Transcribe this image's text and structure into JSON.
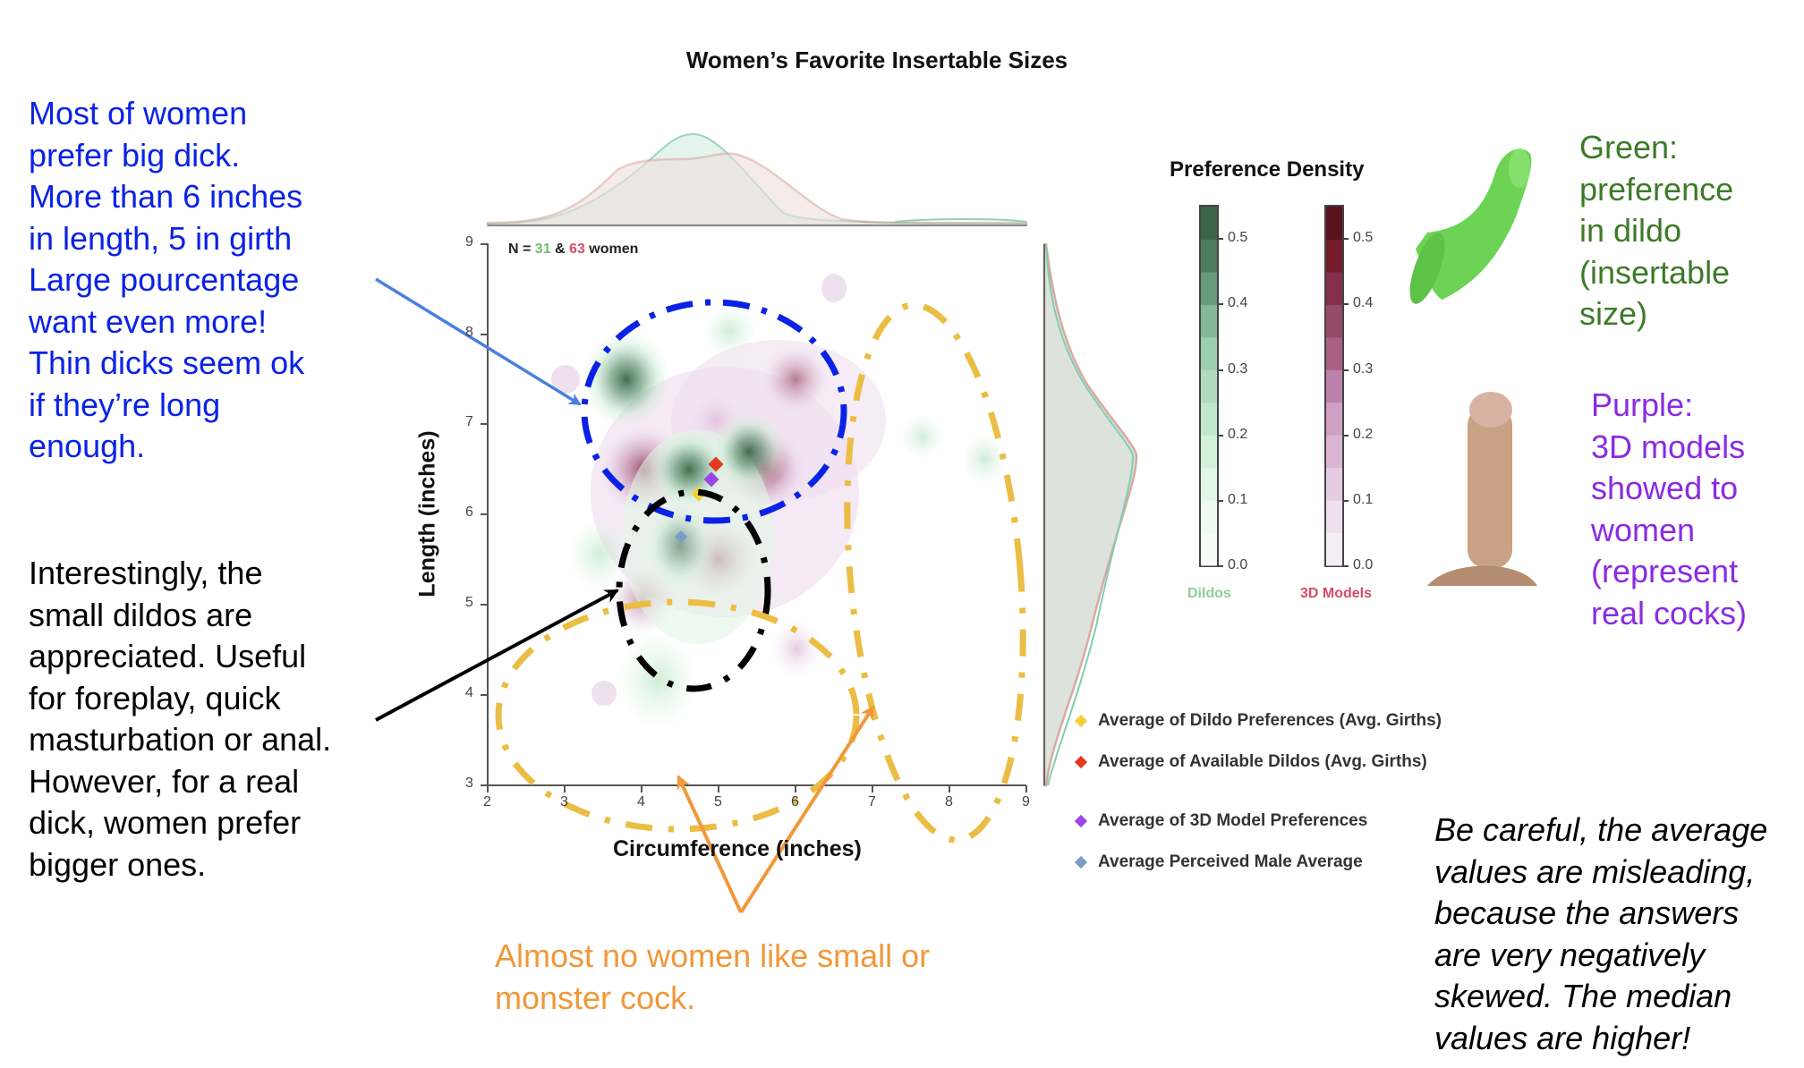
{
  "title": "Women’s Favorite Insertable Sizes",
  "sample_label": {
    "prefix": "N = ",
    "dildo_n": "31",
    "sep": " & ",
    "model_n": "63",
    "suffix": " women"
  },
  "axes": {
    "xlabel": "Circumference (inches)",
    "ylabel": "Length (inches)",
    "xticks": [
      "2",
      "3",
      "4",
      "5",
      "6",
      "7",
      "8",
      "9"
    ],
    "yticks": [
      "9",
      "8",
      "7",
      "6",
      "5",
      "4",
      "3"
    ]
  },
  "colorbar": {
    "title": "Preference Density",
    "ticks": [
      "0.5",
      "0.4",
      "0.3",
      "0.2",
      "0.1",
      "0.0"
    ],
    "dildos_label": "Dildos",
    "models_label": "3D Models",
    "green_steps": [
      "#f6fbf5",
      "#eefaf0",
      "#e2f6e6",
      "#d2f0da",
      "#c2e8cc",
      "#b0dcbd",
      "#9ccfab",
      "#82b893",
      "#67997a",
      "#4d7d5c",
      "#3a6645"
    ],
    "red_steps": [
      "#f6eef6",
      "#efe0ef",
      "#e6cce3",
      "#dab5d4",
      "#cf9fc4",
      "#bd82ab",
      "#a96082",
      "#964b67",
      "#842e4b",
      "#751a2a",
      "#5a121d"
    ]
  },
  "legend": [
    {
      "label": "Average of Dildo Preferences (Avg. Girths)",
      "color": "#f3cf3a"
    },
    {
      "label": "Average of Available Dildos (Avg. Girths)",
      "color": "#e23a22"
    },
    {
      "label": "Average of 3D Model Preferences",
      "color": "#9b45e6"
    },
    {
      "label": "Average Perceived Male Average",
      "color": "#7a9cc8"
    }
  ],
  "annotations": {
    "blue": "Most of women\nprefer big dick.\nMore than 6 inches\nin length, 5 in girth\nLarge pourcentage\nwant even more!\nThin dicks  seem ok\nif they’re long\nenough.",
    "black": "Interestingly, the\nsmall dildos are\nappreciated. Useful\nfor foreplay, quick\nmasturbation or anal.\nHowever, for a real\ndick, women prefer\nbigger ones.",
    "orange": "Almost no women like small or\nmonster cock.",
    "green": "Green:\npreference\nin dildo\n(insertable\nsize)",
    "purple": "Purple:\n3D models\nshowed to\nwomen\n(represent\nreal cocks)",
    "italic": "Be careful, the average\nvalues are misleading,\nbecause the answers\nare very negatively\nskewed. The median\nvalues are higher!"
  },
  "colors": {
    "blue_note": "#0a22e6",
    "orange_note": "#f0983a",
    "green_note": "#3d7a28",
    "purple_note": "#8a2be2",
    "ellipse_blue": "#0a22e6",
    "ellipse_black": "#000000",
    "ellipse_yellow": "#ebbd45",
    "dildo_green": "#5dbf5d",
    "model_red": "#c2506e"
  },
  "chart_data": {
    "type": "heatmap",
    "title": "Women’s Favorite Insertable Sizes",
    "subtitle": "N = 31 & 63 women",
    "xlabel": "Circumference (inches)",
    "ylabel": "Length (inches)",
    "xlim": [
      2,
      9
    ],
    "ylim": [
      3,
      9
    ],
    "grid": false,
    "legend_position": "right",
    "colorbar_range": [
      0.0,
      0.55
    ],
    "series": [
      {
        "name": "Dildos",
        "kind": "density_peaks",
        "points": [
          {
            "x": 3.8,
            "y": 7.5,
            "density": 0.5
          },
          {
            "x": 4.6,
            "y": 6.5,
            "density": 0.45
          },
          {
            "x": 5.4,
            "y": 6.7,
            "density": 0.5
          },
          {
            "x": 4.5,
            "y": 5.8,
            "density": 0.3
          },
          {
            "x": 5.1,
            "y": 8.0,
            "density": 0.1
          },
          {
            "x": 7.7,
            "y": 6.85,
            "density": 0.1
          },
          {
            "x": 8.5,
            "y": 6.6,
            "density": 0.1
          },
          {
            "x": 4.1,
            "y": 4.3,
            "density": 0.1
          },
          {
            "x": 3.4,
            "y": 5.5,
            "density": 0.1
          }
        ]
      },
      {
        "name": "3D Models",
        "kind": "density_peaks",
        "points": [
          {
            "x": 6.0,
            "y": 7.5,
            "density": 0.3
          },
          {
            "x": 4.0,
            "y": 6.5,
            "density": 0.45
          },
          {
            "x": 5.5,
            "y": 6.5,
            "density": 0.45
          },
          {
            "x": 5.0,
            "y": 5.5,
            "density": 0.35
          },
          {
            "x": 4.0,
            "y": 5.05,
            "density": 0.25
          },
          {
            "x": 6.0,
            "y": 4.5,
            "density": 0.15
          },
          {
            "x": 2.5,
            "y": 7.5,
            "density": 0.05
          },
          {
            "x": 7.5,
            "y": 8.5,
            "density": 0.05
          },
          {
            "x": 3.5,
            "y": 4.0,
            "density": 0.05
          }
        ]
      },
      {
        "name": "Average of Dildo Preferences (Avg. Girths)",
        "kind": "marker",
        "x": 4.8,
        "y": 6.2
      },
      {
        "name": "Average of Available Dildos (Avg. Girths)",
        "kind": "marker",
        "x": 4.97,
        "y": 6.55
      },
      {
        "name": "Average of 3D Model Preferences",
        "kind": "marker",
        "x": 4.92,
        "y": 6.38
      },
      {
        "name": "Average Perceived Male Average",
        "kind": "marker",
        "x": 4.5,
        "y": 5.75
      }
    ],
    "marginal_x": {
      "dildos_peak": 4.7,
      "models_peak": 5.3,
      "range": [
        2,
        9
      ]
    },
    "marginal_y": {
      "dildos_peak": 6.8,
      "models_peak": 6.8,
      "range": [
        3,
        9
      ]
    },
    "colorbar_ticks": [
      0.0,
      0.1,
      0.2,
      0.3,
      0.4,
      0.5
    ]
  }
}
